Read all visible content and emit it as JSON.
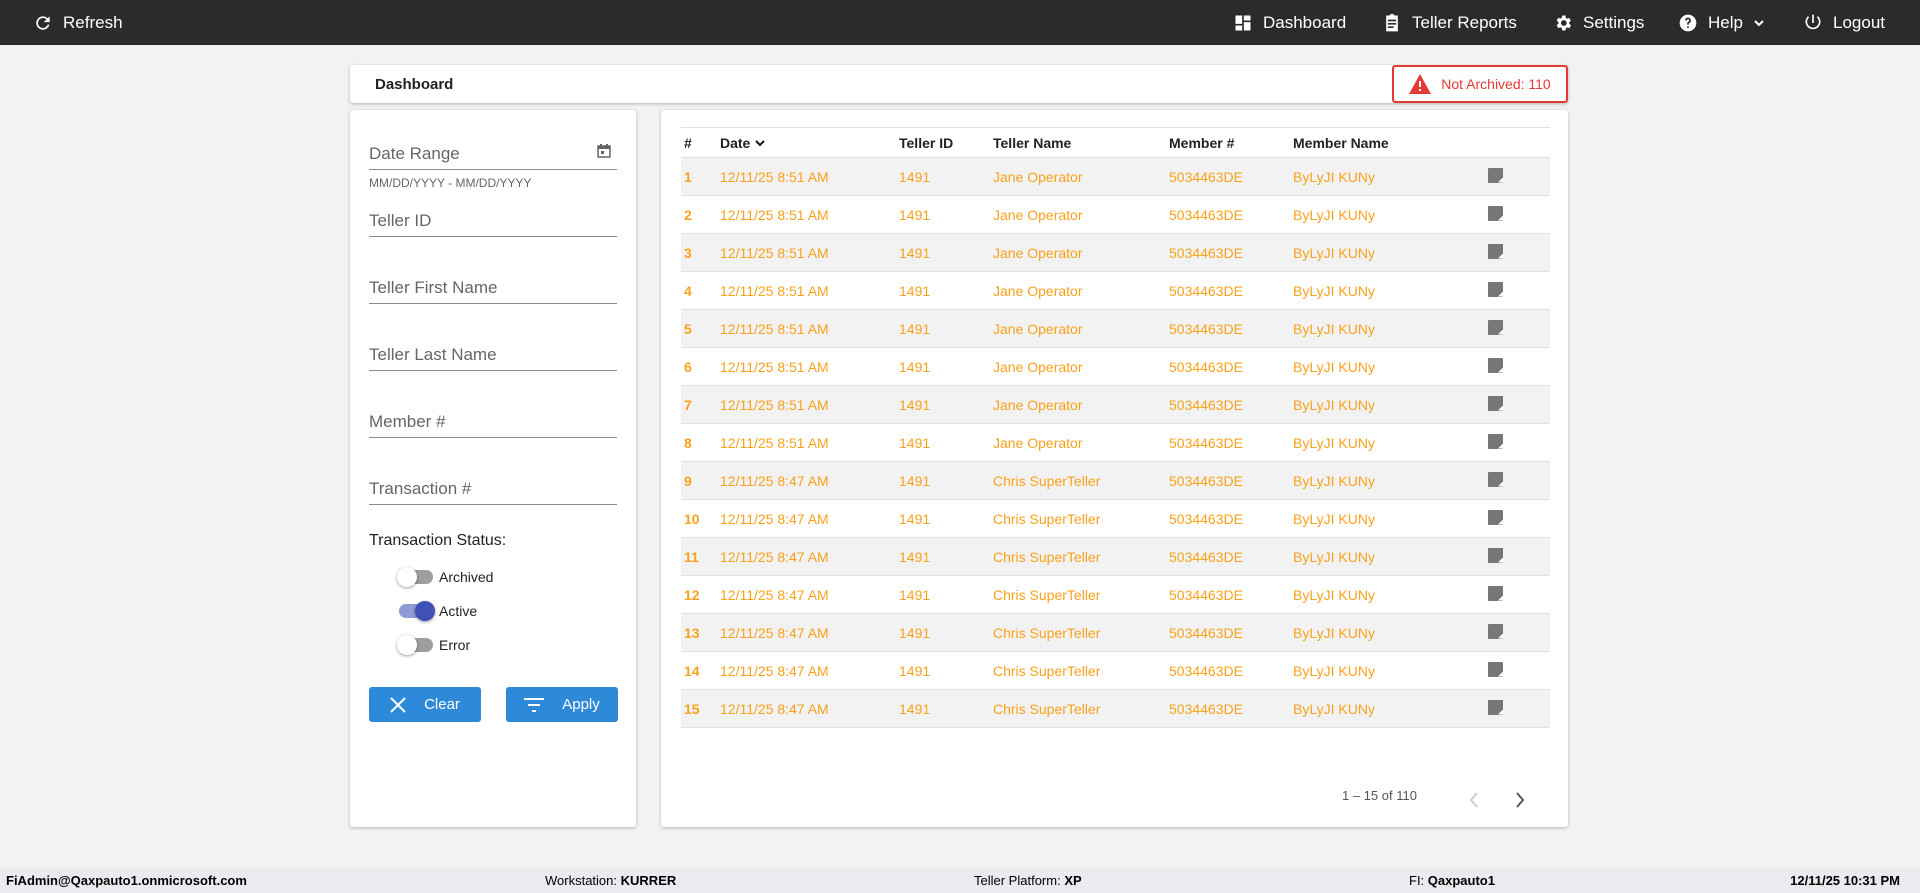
{
  "topbar": {
    "refresh": "Refresh",
    "dashboard": "Dashboard",
    "teller_reports": "Teller Reports",
    "settings": "Settings",
    "help": "Help",
    "logout": "Logout"
  },
  "header": {
    "title": "Dashboard",
    "alert": "Not Archived: 110",
    "alert_color": "#e53935"
  },
  "filters": {
    "date_range": "Date Range",
    "date_hint": "MM/DD/YYYY - MM/DD/YYYY",
    "teller_id": "Teller ID",
    "teller_first": "Teller First Name",
    "teller_last": "Teller Last Name",
    "member": "Member #",
    "transaction": "Transaction #",
    "status_label": "Transaction Status:",
    "statuses": [
      {
        "label": "Archived",
        "on": false
      },
      {
        "label": "Active",
        "on": true
      },
      {
        "label": "Error",
        "on": false
      }
    ],
    "clear": "Clear",
    "apply": "Apply"
  },
  "table": {
    "columns": [
      "#",
      "Date",
      "Teller ID",
      "Teller Name",
      "Member #",
      "Member Name"
    ],
    "rows": [
      [
        "1",
        "12/11/25 8:51 AM",
        "1491",
        "Jane Operator",
        "5034463DE",
        "ByLyJI KUNy"
      ],
      [
        "2",
        "12/11/25 8:51 AM",
        "1491",
        "Jane Operator",
        "5034463DE",
        "ByLyJI KUNy"
      ],
      [
        "3",
        "12/11/25 8:51 AM",
        "1491",
        "Jane Operator",
        "5034463DE",
        "ByLyJI KUNy"
      ],
      [
        "4",
        "12/11/25 8:51 AM",
        "1491",
        "Jane Operator",
        "5034463DE",
        "ByLyJI KUNy"
      ],
      [
        "5",
        "12/11/25 8:51 AM",
        "1491",
        "Jane Operator",
        "5034463DE",
        "ByLyJI KUNy"
      ],
      [
        "6",
        "12/11/25 8:51 AM",
        "1491",
        "Jane Operator",
        "5034463DE",
        "ByLyJI KUNy"
      ],
      [
        "7",
        "12/11/25 8:51 AM",
        "1491",
        "Jane Operator",
        "5034463DE",
        "ByLyJI KUNy"
      ],
      [
        "8",
        "12/11/25 8:51 AM",
        "1491",
        "Jane Operator",
        "5034463DE",
        "ByLyJI KUNy"
      ],
      [
        "9",
        "12/11/25 8:47 AM",
        "1491",
        "Chris SuperTeller",
        "5034463DE",
        "ByLyJI KUNy"
      ],
      [
        "10",
        "12/11/25 8:47 AM",
        "1491",
        "Chris SuperTeller",
        "5034463DE",
        "ByLyJI KUNy"
      ],
      [
        "11",
        "12/11/25 8:47 AM",
        "1491",
        "Chris SuperTeller",
        "5034463DE",
        "ByLyJI KUNy"
      ],
      [
        "12",
        "12/11/25 8:47 AM",
        "1491",
        "Chris SuperTeller",
        "5034463DE",
        "ByLyJI KUNy"
      ],
      [
        "13",
        "12/11/25 8:47 AM",
        "1491",
        "Chris SuperTeller",
        "5034463DE",
        "ByLyJI KUNy"
      ],
      [
        "14",
        "12/11/25 8:47 AM",
        "1491",
        "Chris SuperTeller",
        "5034463DE",
        "ByLyJI KUNy"
      ],
      [
        "15",
        "12/11/25 8:47 AM",
        "1491",
        "Chris SuperTeller",
        "5034463DE",
        "ByLyJI KUNy"
      ]
    ],
    "pagination": "1 – 15 of 110"
  },
  "footer": {
    "user": "FiAdmin@Qaxpauto1.onmicrosoft.com",
    "workstation_label": "Workstation:",
    "workstation": "KURRER",
    "platform_label": "Teller Platform:",
    "platform": "XP",
    "fi_label": "FI:",
    "fi": "Qaxpauto1",
    "datetime": "12/11/25 10:31 PM"
  }
}
